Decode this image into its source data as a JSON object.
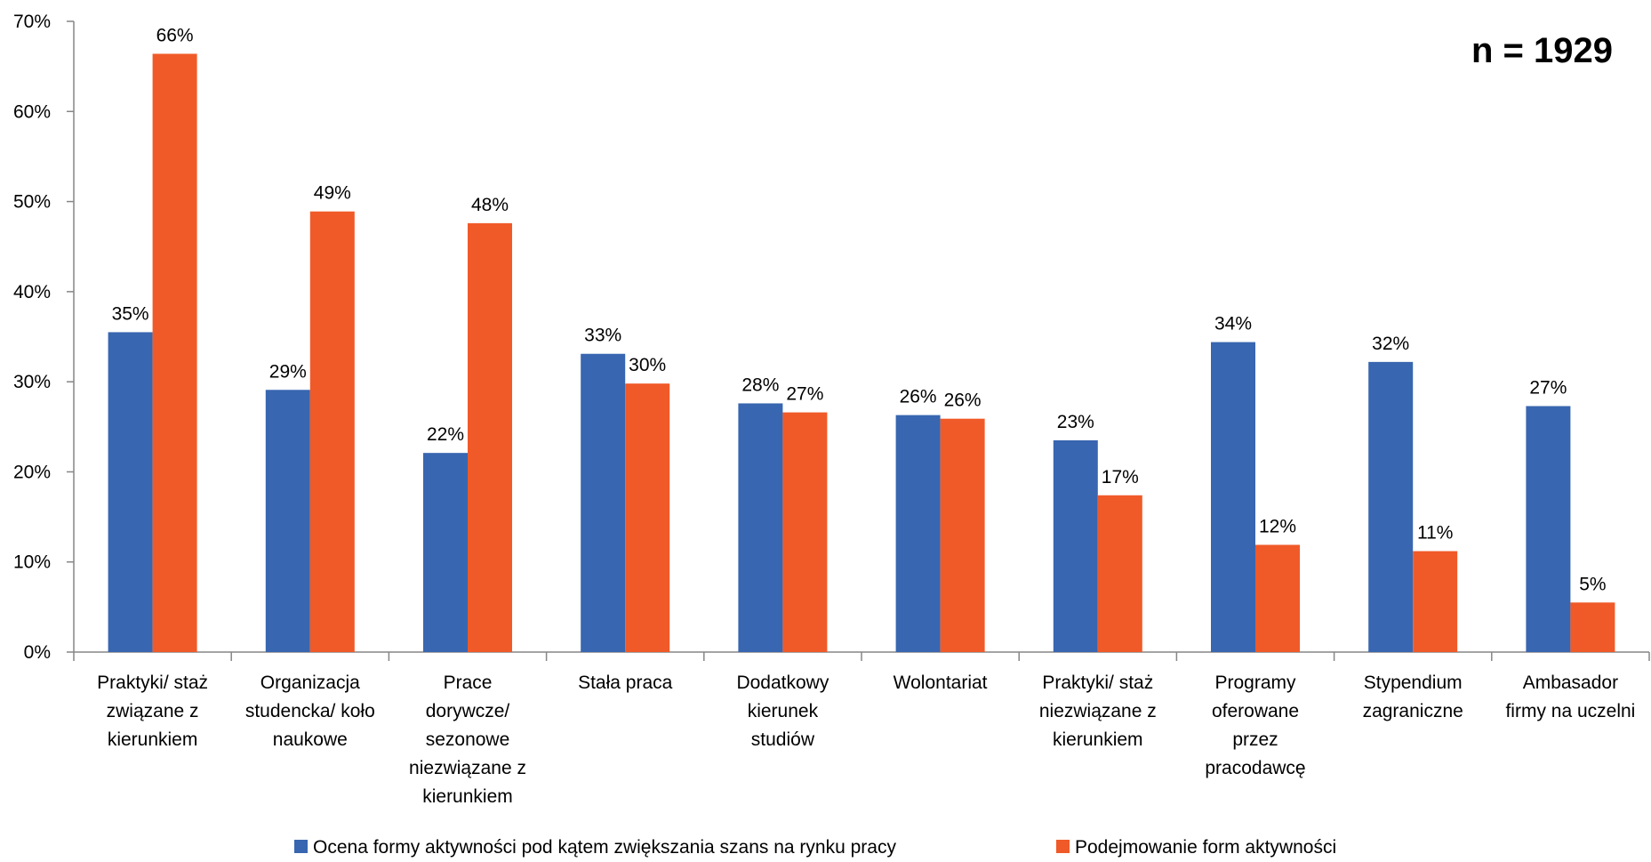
{
  "annotation": "n = 1929",
  "chart_data": {
    "type": "bar",
    "title": "",
    "xlabel": "",
    "ylabel": "",
    "ylim": [
      0,
      70
    ],
    "yticks": [
      "0%",
      "10%",
      "20%",
      "30%",
      "40%",
      "50%",
      "60%",
      "70%"
    ],
    "grid": false,
    "legend_position": "bottom",
    "categories": [
      [
        "Praktyki/ staż",
        "związane z",
        "kierunkiem"
      ],
      [
        "Organizacja",
        "studencka/ koło",
        "naukowe"
      ],
      [
        "Prace",
        "dorywcze/",
        "sezonowe",
        "niezwiązane z",
        "kierunkiem"
      ],
      [
        "Stała praca"
      ],
      [
        "Dodatkowy",
        "kierunek",
        "studiów"
      ],
      [
        "Wolontariat"
      ],
      [
        "Praktyki/ staż",
        "niezwiązane z",
        "kierunkiem"
      ],
      [
        "Programy",
        "oferowane",
        "przez",
        "pracodawcę"
      ],
      [
        "Stypendium",
        "zagraniczne"
      ],
      [
        "Ambasador",
        "firmy na uczelni"
      ]
    ],
    "series": [
      {
        "name": "Ocena formy aktywności pod kątem zwiększania szans na rynku pracy",
        "color": "#3866B0",
        "values": [
          35.5,
          29.1,
          22.1,
          33.1,
          27.6,
          26.3,
          23.5,
          34.4,
          32.2,
          27.3
        ],
        "labels": [
          "35%",
          "29%",
          "22%",
          "33%",
          "28%",
          "26%",
          "23%",
          "34%",
          "32%",
          "27%"
        ]
      },
      {
        "name": "Podejmowanie form aktywności",
        "color": "#F05A28",
        "values": [
          66.4,
          48.9,
          47.6,
          29.8,
          26.6,
          25.9,
          17.4,
          11.9,
          11.2,
          5.5
        ],
        "labels": [
          "66%",
          "49%",
          "48%",
          "30%",
          "27%",
          "26%",
          "17%",
          "12%",
          "11%",
          "5%"
        ]
      }
    ]
  }
}
